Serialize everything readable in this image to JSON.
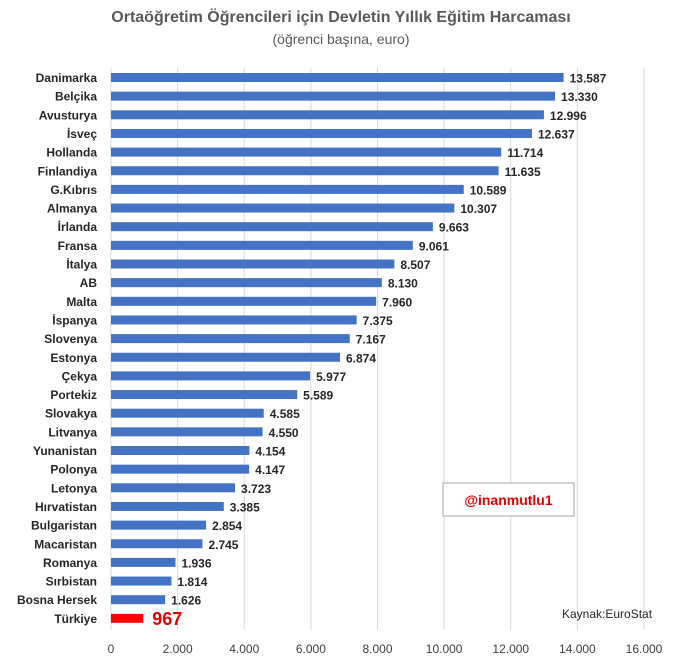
{
  "chart_data": {
    "type": "bar",
    "orientation": "horizontal",
    "title": "Ortaöğretim Öğrencileri için Devletin Yıllık Eğitim Harcaması",
    "subtitle": "(öğrenci başına, euro)",
    "categories": [
      "Danimarka",
      "Belçika",
      "Avusturya",
      "İsveç",
      "Hollanda",
      "Finlandiya",
      "G.Kıbrıs",
      "Almanya",
      "İrlanda",
      "Fransa",
      "İtalya",
      "AB",
      "Malta",
      "İspanya",
      "Slovenya",
      "Estonya",
      "Çekya",
      "Portekiz",
      "Slovakya",
      "Litvanya",
      "Yunanistan",
      "Polonya",
      "Letonya",
      "Hırvatistan",
      "Bulgaristan",
      "Macaristan",
      "Romanya",
      "Sırbistan",
      "Bosna Hersek",
      "Türkiye"
    ],
    "values": [
      13587,
      13330,
      12996,
      12637,
      11714,
      11635,
      10589,
      10307,
      9663,
      9061,
      8507,
      8130,
      7960,
      7375,
      7167,
      6874,
      5977,
      5589,
      4585,
      4550,
      4154,
      4147,
      3723,
      3385,
      2854,
      2745,
      1936,
      1814,
      1626,
      967
    ],
    "value_labels": [
      "13.587",
      "13.330",
      "12.996",
      "12.637",
      "11.714",
      "11.635",
      "10.589",
      "10.307",
      "9.663",
      "9.061",
      "8.507",
      "8.130",
      "7.960",
      "7.375",
      "7.167",
      "6.874",
      "5.977",
      "5.589",
      "4.585",
      "4.550",
      "4.154",
      "4.147",
      "3.723",
      "3.385",
      "2.854",
      "2.745",
      "1.936",
      "1.814",
      "1.626",
      "967"
    ],
    "highlight_category": "Türkiye",
    "xlim": [
      0,
      16000
    ],
    "xticks": [
      0,
      2000,
      4000,
      6000,
      8000,
      10000,
      12000,
      14000,
      16000
    ],
    "xtick_labels": [
      "0",
      "2.000",
      "4.000",
      "6.000",
      "8.000",
      "10.000",
      "12.000",
      "14.000",
      "16.000"
    ],
    "grid": true,
    "bar_color": "#4472c4",
    "highlight_color": "#ff0000"
  },
  "watermark": "@inanmutlu1",
  "source": "Kaynak:EuroStat"
}
